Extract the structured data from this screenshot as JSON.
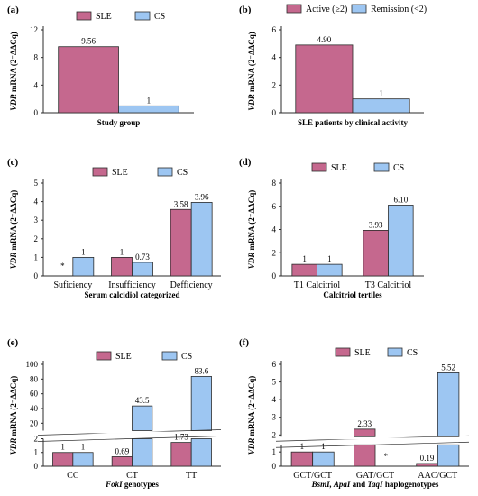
{
  "colors": {
    "sle": "#c5688e",
    "cs": "#9dc6f2",
    "stroke": "#2b2b2b"
  },
  "chart_data": [
    {
      "panel_label": "(a)",
      "type": "bar",
      "categories": [
        ""
      ],
      "series": [
        {
          "name": "SLE",
          "values": [
            9.56
          ],
          "labels": [
            "9.56"
          ]
        },
        {
          "name": "CS",
          "values": [
            1
          ],
          "labels": [
            "1"
          ]
        }
      ],
      "xlabel": "Study group",
      "ylabel_italic": "VDR",
      "ylabel_rest": " mRNA  (2⁻ΔΔCq)",
      "yticks": [
        "0",
        "4",
        "8",
        "12"
      ],
      "ylim": [
        0,
        12
      ],
      "legend": "top"
    },
    {
      "panel_label": "(b)",
      "type": "bar",
      "categories": [
        ""
      ],
      "series": [
        {
          "name": "Active  (≥2)",
          "values": [
            4.9
          ],
          "labels": [
            "4.90"
          ]
        },
        {
          "name": "Remission  (<2)",
          "values": [
            1
          ],
          "labels": [
            "1"
          ]
        }
      ],
      "xlabel": "SLE patients by clinical activity",
      "ylabel_italic": "VDR",
      "ylabel_rest": " mRNA  (2⁻ΔΔCq)",
      "yticks": [
        "0",
        "2",
        "4",
        "6"
      ],
      "ylim": [
        0,
        6
      ],
      "legend": "top"
    },
    {
      "panel_label": "(c)",
      "type": "bar",
      "categories": [
        "Suficiency",
        "Insufficiency",
        "Defficiency"
      ],
      "series": [
        {
          "name": "SLE",
          "values": [
            0,
            1,
            3.58
          ],
          "labels": [
            "*",
            "1",
            "3.58"
          ]
        },
        {
          "name": "CS",
          "values": [
            1,
            0.73,
            3.96
          ],
          "labels": [
            "1",
            "0.73",
            "3.96"
          ]
        }
      ],
      "xlabel": "Serum calcidiol categorized",
      "ylabel_italic": "VDR",
      "ylabel_rest": " mRNA  (2⁻ΔΔCq)",
      "yticks": [
        "0",
        "1",
        "2",
        "3",
        "4",
        "5"
      ],
      "ylim": [
        0,
        5
      ],
      "legend": "top"
    },
    {
      "panel_label": "(d)",
      "type": "bar",
      "categories": [
        "T1 Calcitriol",
        "T3 Calcitriol"
      ],
      "series": [
        {
          "name": "SLE",
          "values": [
            1,
            3.93
          ],
          "labels": [
            "1",
            "3.93"
          ]
        },
        {
          "name": "CS",
          "values": [
            1,
            6.1
          ],
          "labels": [
            "1",
            "6.10"
          ]
        }
      ],
      "xlabel": "Calcitriol tertiles",
      "ylabel_italic": "VDR",
      "ylabel_rest": " mRNA  (2⁻ΔΔCq)",
      "yticks": [
        "0",
        "2",
        "4",
        "6",
        "8"
      ],
      "ylim": [
        0,
        8
      ],
      "legend": "top"
    },
    {
      "panel_label": "(e)",
      "type": "bar",
      "categories": [
        "CC",
        "CT",
        "TT"
      ],
      "series": [
        {
          "name": "SLE",
          "values": [
            1,
            0.69,
            1.73
          ],
          "labels": [
            "1",
            "0.69",
            "1.73"
          ]
        },
        {
          "name": "CS",
          "values": [
            1,
            43.5,
            83.6
          ],
          "labels": [
            "1",
            "43.5",
            "83.6"
          ]
        }
      ],
      "xlabel_italic": "FokI",
      "xlabel_rest": " genotypes",
      "ylabel_italic": "VDR",
      "ylabel_rest": " mRNA  (2⁻ΔΔCq)",
      "yticks_lower": [
        "0",
        "1",
        "2"
      ],
      "yticks_upper": [
        "20",
        "40",
        "60",
        "80",
        "100"
      ],
      "broken_axis": {
        "lower": [
          0,
          2
        ],
        "upper": [
          10,
          100
        ]
      },
      "legend": "top"
    },
    {
      "panel_label": "(f)",
      "type": "bar",
      "categories": [
        "GCT/GCT",
        "GAT/GCT",
        "AAC/GCT"
      ],
      "series": [
        {
          "name": "SLE",
          "values": [
            1,
            2.33,
            0.19
          ],
          "labels": [
            "1",
            "2.33",
            "0.19"
          ]
        },
        {
          "name": "CS",
          "values": [
            1,
            0,
            5.52
          ],
          "labels": [
            "1",
            "*",
            "5.52"
          ]
        }
      ],
      "xlabel_italic": "BsmI, ApaI",
      "xlabel_mid": " and ",
      "xlabel_italic2": "TaqI",
      "xlabel_rest": " haplogenotypes",
      "ylabel_italic": "VDR",
      "ylabel_rest": " mRNA  (2⁻ΔΔCq)",
      "yticks_lower": [
        "0",
        "1"
      ],
      "yticks_upper": [
        "2",
        "3",
        "4",
        "5",
        "6"
      ],
      "broken_axis": {
        "lower": [
          0,
          1.5
        ],
        "upper": [
          1.9,
          6
        ]
      },
      "legend": "top"
    }
  ]
}
